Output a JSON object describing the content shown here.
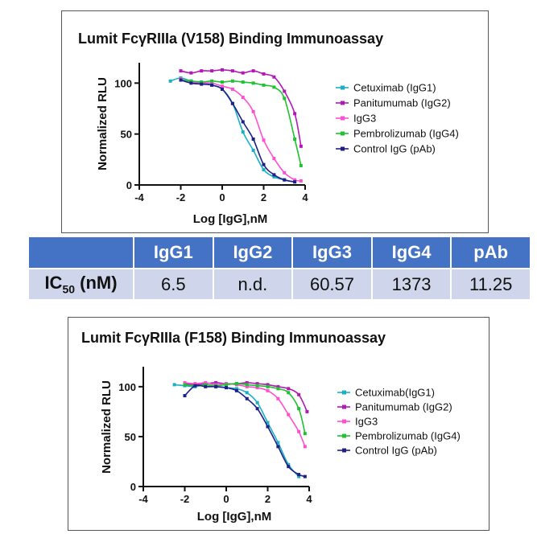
{
  "chart_data": [
    {
      "type": "scatter",
      "title": "Lumit FcγRIIIa (V158) Binding Immunoassay",
      "xlabel": "Log [IgG],nM",
      "ylabel": "Normalized RLU",
      "xlim": [
        -4,
        4
      ],
      "ylim": [
        0,
        120
      ],
      "xticks": [
        "-4",
        "-2",
        "0",
        "2",
        "4"
      ],
      "yticks": [
        "0",
        "50",
        "100"
      ],
      "legend_position": "right",
      "series": [
        {
          "name": "Cetuximab (IgG1)",
          "color": "#1ab0c4",
          "x": [
            -2.5,
            -2.0,
            -1.5,
            -1.0,
            -0.5,
            0.0,
            0.5,
            1.0,
            1.5,
            2.0,
            2.5,
            3.0,
            3.5
          ],
          "y": [
            102,
            105,
            102,
            101,
            98,
            94,
            80,
            52,
            34,
            15,
            8,
            5,
            3
          ]
        },
        {
          "name": "Panitumumab (IgG2)",
          "color": "#b218b8",
          "x": [
            -2.0,
            -1.5,
            -1.0,
            -0.5,
            0.0,
            0.5,
            1.0,
            1.5,
            2.0,
            2.5,
            3.0,
            3.5,
            3.8
          ],
          "y": [
            112,
            110,
            112,
            112,
            113,
            112,
            110,
            112,
            109,
            106,
            92,
            70,
            38
          ]
        },
        {
          "name": "IgG3",
          "color": "#ff4fd0",
          "x": [
            -2.0,
            -1.5,
            -1.0,
            -0.5,
            0.0,
            0.5,
            1.0,
            1.5,
            2.0,
            2.5,
            3.0,
            3.5,
            3.8
          ],
          "y": [
            104,
            101,
            100,
            100,
            97,
            94,
            86,
            72,
            44,
            26,
            12,
            5,
            4
          ]
        },
        {
          "name": "Pembrolizumab (IgG4)",
          "color": "#1fc230",
          "x": [
            -2.0,
            -1.5,
            -1.0,
            -0.5,
            0.0,
            0.5,
            1.0,
            1.5,
            2.0,
            2.5,
            3.0,
            3.5,
            3.8
          ],
          "y": [
            103,
            102,
            101,
            102,
            101,
            102,
            101,
            100,
            98,
            96,
            85,
            45,
            19
          ]
        },
        {
          "name": "Control IgG (pAb)",
          "color": "#1f1f8a",
          "x": [
            -2.0,
            -1.5,
            -1.0,
            -0.5,
            0.0,
            0.5,
            1.0,
            1.5,
            2.0,
            2.5,
            3.0,
            3.5
          ],
          "y": [
            103,
            100,
            99,
            98,
            94,
            80,
            62,
            45,
            20,
            10,
            5,
            3
          ]
        }
      ]
    },
    {
      "type": "scatter",
      "title": "Lumit FcγRIIIa (F158) Binding Immunoassay",
      "xlabel": "Log [IgG],nM",
      "ylabel": "Normalized RLU",
      "xlim": [
        -4,
        4
      ],
      "ylim": [
        0,
        120
      ],
      "xticks": [
        "-4",
        "-2",
        "0",
        "2",
        "4"
      ],
      "yticks": [
        "0",
        "50",
        "100"
      ],
      "legend_position": "right",
      "series": [
        {
          "name": "Cetuximab(IgG1)",
          "color": "#1ab0c4",
          "x": [
            -2.5,
            -2.0,
            -1.5,
            -1.0,
            -0.5,
            0.0,
            0.5,
            1.0,
            1.5,
            2.0,
            2.5,
            3.0,
            3.5
          ],
          "y": [
            102,
            101,
            100,
            102,
            100,
            99,
            98,
            94,
            84,
            64,
            44,
            22,
            10
          ]
        },
        {
          "name": "Panitumumab (IgG2)",
          "color": "#b218b8",
          "x": [
            -2.0,
            -1.5,
            -1.0,
            -0.5,
            0.0,
            0.5,
            1.0,
            1.5,
            2.0,
            2.5,
            3.0,
            3.5,
            3.9
          ],
          "y": [
            103,
            102,
            103,
            104,
            103,
            103,
            104,
            103,
            102,
            100,
            98,
            92,
            75
          ]
        },
        {
          "name": "IgG3",
          "color": "#ff4fd0",
          "x": [
            -2.0,
            -1.5,
            -1.0,
            -0.5,
            0.0,
            0.5,
            1.0,
            1.5,
            2.0,
            2.5,
            3.0,
            3.5,
            3.8
          ],
          "y": [
            104,
            103,
            104,
            102,
            103,
            102,
            100,
            99,
            96,
            88,
            72,
            55,
            40
          ]
        },
        {
          "name": "Pembrolizumab (IgG4)",
          "color": "#1fc230",
          "x": [
            -2.0,
            -1.5,
            -1.0,
            -0.5,
            0.0,
            0.5,
            1.0,
            1.5,
            2.0,
            2.5,
            3.0,
            3.5,
            3.8
          ],
          "y": [
            102,
            101,
            102,
            101,
            102,
            103,
            102,
            101,
            100,
            98,
            94,
            78,
            53
          ]
        },
        {
          "name": "Control IgG (pAb)",
          "color": "#1f1f8a",
          "x": [
            -2.0,
            -1.5,
            -1.0,
            -0.5,
            0.0,
            0.5,
            1.0,
            1.5,
            2.0,
            2.5,
            3.0,
            3.5,
            3.8
          ],
          "y": [
            91,
            101,
            100,
            100,
            99,
            96,
            88,
            78,
            60,
            40,
            20,
            12,
            10
          ]
        }
      ]
    }
  ],
  "ic50_table": {
    "headers": [
      "IgG1",
      "IgG2",
      "IgG3",
      "IgG4",
      "pAb"
    ],
    "row_label": "IC",
    "row_label_sub": "50",
    "row_label_unit": " (nM)",
    "values": [
      "6.5",
      "n.d.",
      "60.57",
      "1373",
      "11.25"
    ]
  }
}
